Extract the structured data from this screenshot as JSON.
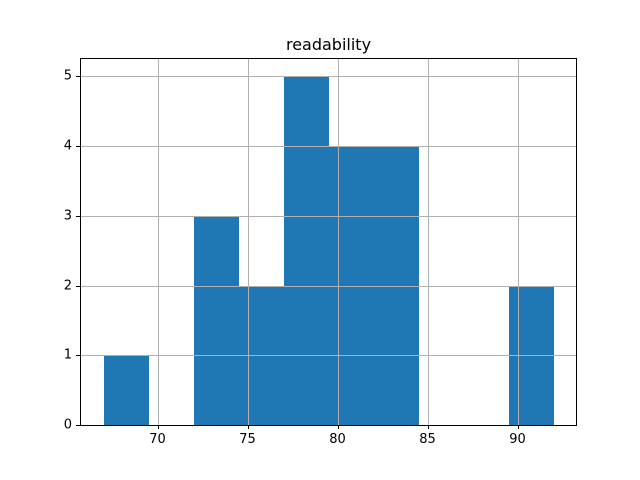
{
  "chart_data": {
    "type": "bar",
    "subtype": "histogram",
    "title": "readability",
    "xlabel": "",
    "ylabel": "",
    "bin_edges": [
      67,
      69.5,
      72,
      74.5,
      77,
      79.5,
      82,
      84.5,
      87,
      89.5,
      92
    ],
    "counts": [
      1,
      0,
      3,
      2,
      5,
      4,
      4,
      0,
      0,
      2
    ],
    "xticks": [
      70,
      75,
      80,
      85,
      90
    ],
    "yticks": [
      0,
      1,
      2,
      3,
      4,
      5
    ],
    "xlim": [
      65.75,
      93.25
    ],
    "ylim": [
      0,
      5.25
    ],
    "grid": true,
    "legend": false,
    "bar_color": "#1f77b4",
    "grid_color": "#b0b0b0",
    "spine_color": "#000000",
    "text_color": "#000000",
    "background_color": "#ffffff"
  }
}
